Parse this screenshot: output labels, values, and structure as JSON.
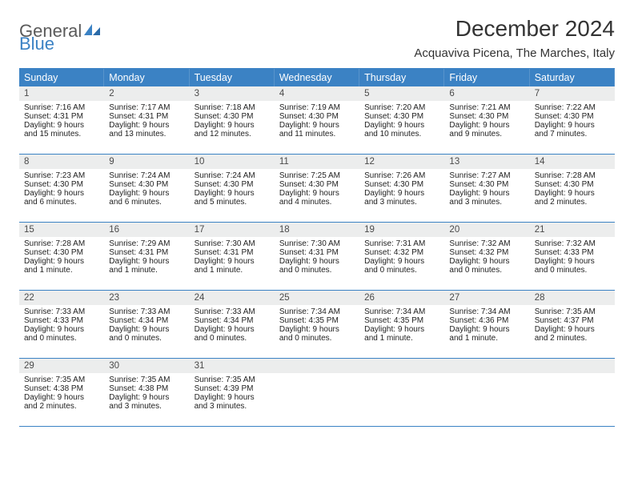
{
  "logo": {
    "text1": "General",
    "text2": "Blue"
  },
  "title": "December 2024",
  "location": "Acquaviva Picena, The Marches, Italy",
  "colors": {
    "brand_blue": "#3b82c4",
    "header_text": "#ffffff",
    "daynum_bg": "#eceded",
    "body_text": "#222222",
    "title_text": "#333333"
  },
  "calendar": {
    "days_of_week": [
      "Sunday",
      "Monday",
      "Tuesday",
      "Wednesday",
      "Thursday",
      "Friday",
      "Saturday"
    ],
    "weeks": [
      [
        {
          "n": "1",
          "sunrise": "7:16 AM",
          "sunset": "4:31 PM",
          "dl": "9 hours and 15 minutes."
        },
        {
          "n": "2",
          "sunrise": "7:17 AM",
          "sunset": "4:31 PM",
          "dl": "9 hours and 13 minutes."
        },
        {
          "n": "3",
          "sunrise": "7:18 AM",
          "sunset": "4:30 PM",
          "dl": "9 hours and 12 minutes."
        },
        {
          "n": "4",
          "sunrise": "7:19 AM",
          "sunset": "4:30 PM",
          "dl": "9 hours and 11 minutes."
        },
        {
          "n": "5",
          "sunrise": "7:20 AM",
          "sunset": "4:30 PM",
          "dl": "9 hours and 10 minutes."
        },
        {
          "n": "6",
          "sunrise": "7:21 AM",
          "sunset": "4:30 PM",
          "dl": "9 hours and 9 minutes."
        },
        {
          "n": "7",
          "sunrise": "7:22 AM",
          "sunset": "4:30 PM",
          "dl": "9 hours and 7 minutes."
        }
      ],
      [
        {
          "n": "8",
          "sunrise": "7:23 AM",
          "sunset": "4:30 PM",
          "dl": "9 hours and 6 minutes."
        },
        {
          "n": "9",
          "sunrise": "7:24 AM",
          "sunset": "4:30 PM",
          "dl": "9 hours and 6 minutes."
        },
        {
          "n": "10",
          "sunrise": "7:24 AM",
          "sunset": "4:30 PM",
          "dl": "9 hours and 5 minutes."
        },
        {
          "n": "11",
          "sunrise": "7:25 AM",
          "sunset": "4:30 PM",
          "dl": "9 hours and 4 minutes."
        },
        {
          "n": "12",
          "sunrise": "7:26 AM",
          "sunset": "4:30 PM",
          "dl": "9 hours and 3 minutes."
        },
        {
          "n": "13",
          "sunrise": "7:27 AM",
          "sunset": "4:30 PM",
          "dl": "9 hours and 3 minutes."
        },
        {
          "n": "14",
          "sunrise": "7:28 AM",
          "sunset": "4:30 PM",
          "dl": "9 hours and 2 minutes."
        }
      ],
      [
        {
          "n": "15",
          "sunrise": "7:28 AM",
          "sunset": "4:30 PM",
          "dl": "9 hours and 1 minute."
        },
        {
          "n": "16",
          "sunrise": "7:29 AM",
          "sunset": "4:31 PM",
          "dl": "9 hours and 1 minute."
        },
        {
          "n": "17",
          "sunrise": "7:30 AM",
          "sunset": "4:31 PM",
          "dl": "9 hours and 1 minute."
        },
        {
          "n": "18",
          "sunrise": "7:30 AM",
          "sunset": "4:31 PM",
          "dl": "9 hours and 0 minutes."
        },
        {
          "n": "19",
          "sunrise": "7:31 AM",
          "sunset": "4:32 PM",
          "dl": "9 hours and 0 minutes."
        },
        {
          "n": "20",
          "sunrise": "7:32 AM",
          "sunset": "4:32 PM",
          "dl": "9 hours and 0 minutes."
        },
        {
          "n": "21",
          "sunrise": "7:32 AM",
          "sunset": "4:33 PM",
          "dl": "9 hours and 0 minutes."
        }
      ],
      [
        {
          "n": "22",
          "sunrise": "7:33 AM",
          "sunset": "4:33 PM",
          "dl": "9 hours and 0 minutes."
        },
        {
          "n": "23",
          "sunrise": "7:33 AM",
          "sunset": "4:34 PM",
          "dl": "9 hours and 0 minutes."
        },
        {
          "n": "24",
          "sunrise": "7:33 AM",
          "sunset": "4:34 PM",
          "dl": "9 hours and 0 minutes."
        },
        {
          "n": "25",
          "sunrise": "7:34 AM",
          "sunset": "4:35 PM",
          "dl": "9 hours and 0 minutes."
        },
        {
          "n": "26",
          "sunrise": "7:34 AM",
          "sunset": "4:35 PM",
          "dl": "9 hours and 1 minute."
        },
        {
          "n": "27",
          "sunrise": "7:34 AM",
          "sunset": "4:36 PM",
          "dl": "9 hours and 1 minute."
        },
        {
          "n": "28",
          "sunrise": "7:35 AM",
          "sunset": "4:37 PM",
          "dl": "9 hours and 2 minutes."
        }
      ],
      [
        {
          "n": "29",
          "sunrise": "7:35 AM",
          "sunset": "4:38 PM",
          "dl": "9 hours and 2 minutes."
        },
        {
          "n": "30",
          "sunrise": "7:35 AM",
          "sunset": "4:38 PM",
          "dl": "9 hours and 3 minutes."
        },
        {
          "n": "31",
          "sunrise": "7:35 AM",
          "sunset": "4:39 PM",
          "dl": "9 hours and 3 minutes."
        },
        null,
        null,
        null,
        null
      ]
    ]
  },
  "labels": {
    "sunrise": "Sunrise:",
    "sunset": "Sunset:",
    "daylight": "Daylight:"
  }
}
